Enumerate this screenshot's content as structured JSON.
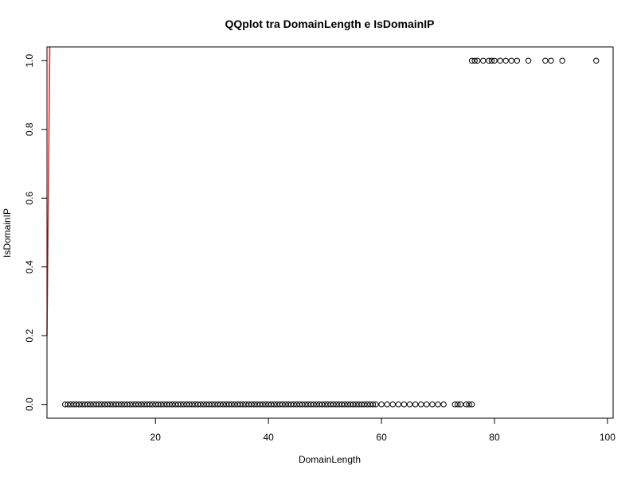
{
  "chart_data": {
    "type": "scatter",
    "title": "QQplot tra DomainLength e IsDomainIP",
    "xlabel": "DomainLength",
    "ylabel": "IsDomainIP",
    "xlim": [
      0.8,
      101
    ],
    "ylim": [
      -0.04,
      1.04
    ],
    "x_ticks": [
      20,
      40,
      60,
      80,
      100
    ],
    "x_tick_labels": [
      "20",
      "40",
      "60",
      "80",
      "100"
    ],
    "y_ticks": [
      0.0,
      0.2,
      0.4,
      0.6,
      0.8,
      1.0
    ],
    "y_tick_labels": [
      "0.0",
      "0.2",
      "0.4",
      "0.6",
      "0.8",
      "1.0"
    ],
    "grid": false,
    "legend": "none",
    "colors": {
      "points": "#000000",
      "reference_line": "#e3242b",
      "frame": "#000000"
    },
    "series": [
      {
        "marker": "open-circle",
        "points": [
          [
            4,
            0
          ],
          [
            4.5,
            0
          ],
          [
            5,
            0
          ],
          [
            5.5,
            0
          ],
          [
            6,
            0
          ],
          [
            6.5,
            0
          ],
          [
            7,
            0
          ],
          [
            7.5,
            0
          ],
          [
            8,
            0
          ],
          [
            8.5,
            0
          ],
          [
            9,
            0
          ],
          [
            9.5,
            0
          ],
          [
            10,
            0
          ],
          [
            10.5,
            0
          ],
          [
            11,
            0
          ],
          [
            11.5,
            0
          ],
          [
            12,
            0
          ],
          [
            12.5,
            0
          ],
          [
            13,
            0
          ],
          [
            13.5,
            0
          ],
          [
            14,
            0
          ],
          [
            14.5,
            0
          ],
          [
            15,
            0
          ],
          [
            15.5,
            0
          ],
          [
            16,
            0
          ],
          [
            16.5,
            0
          ],
          [
            17,
            0
          ],
          [
            17.5,
            0
          ],
          [
            18,
            0
          ],
          [
            18.5,
            0
          ],
          [
            19,
            0
          ],
          [
            19.5,
            0
          ],
          [
            20,
            0
          ],
          [
            20.5,
            0
          ],
          [
            21,
            0
          ],
          [
            21.5,
            0
          ],
          [
            22,
            0
          ],
          [
            22.5,
            0
          ],
          [
            23,
            0
          ],
          [
            23.5,
            0
          ],
          [
            24,
            0
          ],
          [
            24.5,
            0
          ],
          [
            25,
            0
          ],
          [
            25.5,
            0
          ],
          [
            26,
            0
          ],
          [
            26.5,
            0
          ],
          [
            27,
            0
          ],
          [
            27.5,
            0
          ],
          [
            28,
            0
          ],
          [
            28.5,
            0
          ],
          [
            29,
            0
          ],
          [
            29.5,
            0
          ],
          [
            30,
            0
          ],
          [
            30.5,
            0
          ],
          [
            31,
            0
          ],
          [
            31.5,
            0
          ],
          [
            32,
            0
          ],
          [
            32.5,
            0
          ],
          [
            33,
            0
          ],
          [
            33.5,
            0
          ],
          [
            34,
            0
          ],
          [
            34.5,
            0
          ],
          [
            35,
            0
          ],
          [
            35.5,
            0
          ],
          [
            36,
            0
          ],
          [
            36.5,
            0
          ],
          [
            37,
            0
          ],
          [
            37.5,
            0
          ],
          [
            38,
            0
          ],
          [
            38.5,
            0
          ],
          [
            39,
            0
          ],
          [
            39.5,
            0
          ],
          [
            40,
            0
          ],
          [
            40.5,
            0
          ],
          [
            41,
            0
          ],
          [
            41.5,
            0
          ],
          [
            42,
            0
          ],
          [
            42.5,
            0
          ],
          [
            43,
            0
          ],
          [
            43.5,
            0
          ],
          [
            44,
            0
          ],
          [
            44.5,
            0
          ],
          [
            45,
            0
          ],
          [
            45.5,
            0
          ],
          [
            46,
            0
          ],
          [
            46.5,
            0
          ],
          [
            47,
            0
          ],
          [
            47.5,
            0
          ],
          [
            48,
            0
          ],
          [
            48.5,
            0
          ],
          [
            49,
            0
          ],
          [
            49.5,
            0
          ],
          [
            50,
            0
          ],
          [
            50.5,
            0
          ],
          [
            51,
            0
          ],
          [
            51.5,
            0
          ],
          [
            52,
            0
          ],
          [
            52.5,
            0
          ],
          [
            53,
            0
          ],
          [
            53.5,
            0
          ],
          [
            54,
            0
          ],
          [
            54.5,
            0
          ],
          [
            55,
            0
          ],
          [
            55.5,
            0
          ],
          [
            56,
            0
          ],
          [
            56.5,
            0
          ],
          [
            57,
            0
          ],
          [
            57.5,
            0
          ],
          [
            58,
            0
          ],
          [
            58.5,
            0
          ],
          [
            59,
            0
          ],
          [
            60,
            0
          ],
          [
            61,
            0
          ],
          [
            62,
            0
          ],
          [
            63,
            0
          ],
          [
            64,
            0
          ],
          [
            65,
            0
          ],
          [
            66,
            0
          ],
          [
            67,
            0
          ],
          [
            68,
            0
          ],
          [
            69,
            0
          ],
          [
            70,
            0
          ],
          [
            71,
            0
          ],
          [
            73,
            0
          ],
          [
            73.5,
            0
          ],
          [
            74,
            0
          ],
          [
            75,
            0
          ],
          [
            75.5,
            0
          ],
          [
            76,
            0
          ],
          [
            76,
            1
          ],
          [
            76.5,
            1
          ],
          [
            77,
            1
          ],
          [
            78,
            1
          ],
          [
            79,
            1
          ],
          [
            79.5,
            1
          ],
          [
            80,
            1
          ],
          [
            81,
            1
          ],
          [
            82,
            1
          ],
          [
            83,
            1
          ],
          [
            84,
            1
          ],
          [
            86,
            1
          ],
          [
            89,
            1
          ],
          [
            90,
            1
          ],
          [
            92,
            1
          ],
          [
            98,
            1
          ]
        ]
      }
    ],
    "reference_line": {
      "x": [
        0.8,
        1.3
      ],
      "y": [
        0.2,
        1.04
      ]
    }
  }
}
